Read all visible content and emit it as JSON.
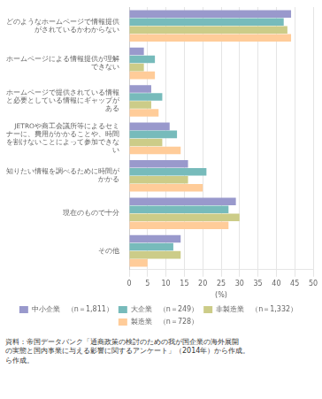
{
  "chart_data": {
    "type": "bar",
    "orientation": "horizontal",
    "categories": [
      "どのようなホームページで情報提供\nがされているかわからない",
      "ホームページによる情報提供が理解\nできない",
      "ホームページで提供されている情報\nと必要としている情報にギャップが\nある",
      "JETROや商工会議所等によるセミ\nナーに、費用がかかることや、時間\nを割けないことによって参加できな\nい",
      "知りたい情報を調べるために時間が\nかかる",
      "現在のもので十分",
      "その他"
    ],
    "series": [
      {
        "name": "中小企業　（n＝1,811）",
        "color": "#9999cc",
        "values": [
          44,
          4,
          6,
          11,
          16,
          29,
          14
        ]
      },
      {
        "name": "大企業　（n＝249）",
        "color": "#77bbbb",
        "values": [
          42,
          7,
          9,
          13,
          21,
          27,
          12
        ]
      },
      {
        "name": "非製造業　（n＝1,332）",
        "color": "#cccc88",
        "values": [
          43,
          4,
          6,
          9,
          16,
          30,
          14
        ]
      },
      {
        "name": "製造業　（n＝728）",
        "color": "#ffcc99",
        "values": [
          44,
          7,
          8,
          14,
          20,
          27,
          5
        ]
      }
    ],
    "x_label": "(%)",
    "xlim": [
      0,
      50
    ],
    "xticks": [
      0,
      5,
      10,
      15,
      20,
      25,
      30,
      35,
      40,
      45,
      50
    ],
    "grid": true,
    "legend": "bottom",
    "annotations": [
      "資料：帝国データバンク「通商政策の検討のための我が国企業の海外展開",
      "の実態と国内事業に与える影響に関するアンケート」（2014年）から作成。",
      "ら作成。"
    ]
  }
}
